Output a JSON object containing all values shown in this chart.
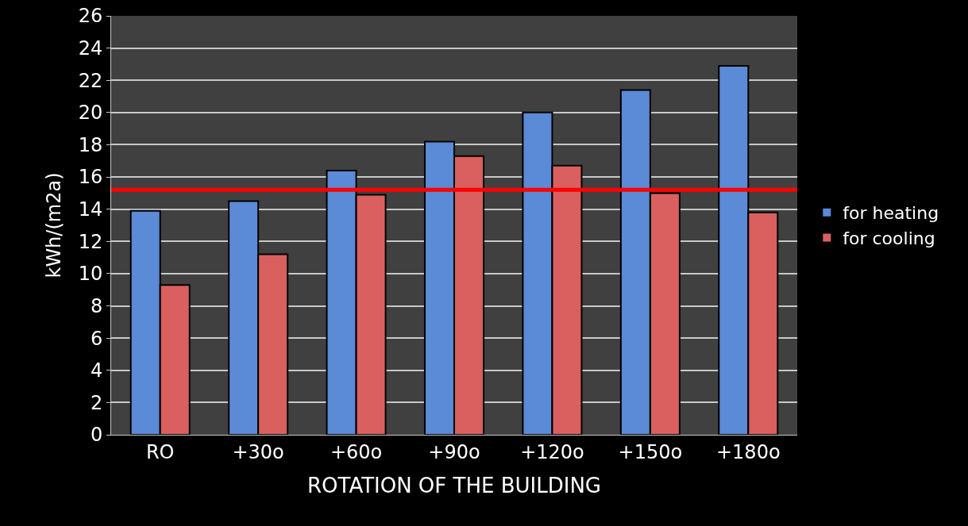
{
  "chart_data": {
    "type": "bar",
    "xlabel": "ROTATION OF THE BUILDING",
    "ylabel": "kWh/(m2a)",
    "categories": [
      "RO",
      "+30o",
      "+60o",
      "+90o",
      "+120o",
      "+150o",
      "+180o"
    ],
    "series": [
      {
        "name": "for heating",
        "color": "#5b8ad6",
        "values": [
          13.9,
          14.5,
          16.4,
          18.2,
          20.0,
          21.4,
          22.9
        ]
      },
      {
        "name": "for cooling",
        "color": "#d9605e",
        "values": [
          9.3,
          11.2,
          14.9,
          17.3,
          16.7,
          15.0,
          13.8
        ]
      }
    ],
    "ylim": [
      0,
      26
    ],
    "yticks": [
      0,
      2,
      4,
      6,
      8,
      10,
      12,
      14,
      16,
      18,
      20,
      22,
      24,
      26
    ],
    "ref_lines": [
      {
        "axis": "y",
        "value": 15.2,
        "color": "#ff0000"
      }
    ],
    "grid": "y",
    "legend": "right"
  }
}
